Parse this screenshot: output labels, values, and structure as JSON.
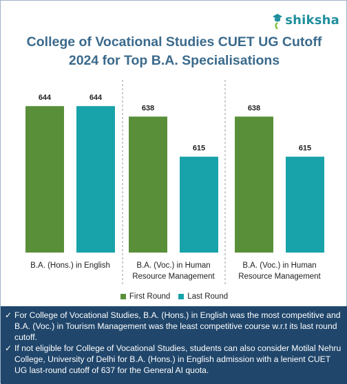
{
  "brand": {
    "name": "shiksha"
  },
  "title_lines": [
    "College of Vocational Studies CUET UG Cutoff",
    "2024 for Top B.A. Specialisations"
  ],
  "colors": {
    "first_round": "#5a8f3a",
    "last_round": "#17a3a9",
    "title": "#3b6a8c",
    "notes_bg": "#20466b"
  },
  "chart_data": {
    "type": "bar",
    "categories": [
      [
        "B.A. (Hons.) in English"
      ],
      [
        "B.A. (Voc.) in Human",
        "Resource Management"
      ],
      [
        "B.A. (Voc.) in Human",
        "Resource Management"
      ]
    ],
    "series": [
      {
        "name": "First Round",
        "values": [
          644,
          638,
          638
        ],
        "color": "#5a8f3a"
      },
      {
        "name": "Last Round",
        "values": [
          644,
          615,
          615
        ],
        "color": "#17a3a9"
      }
    ],
    "ylim": [
      560,
      650
    ],
    "grid": false,
    "legend": "bottom",
    "title": "College of Vocational Studies CUET UG Cutoff 2024 for Top B.A. Specialisations",
    "xlabel": "",
    "ylabel": ""
  },
  "legend": {
    "first_round": "First Round",
    "last_round": "Last Round"
  },
  "notes": {
    "check_glyph": "✓",
    "items": [
      "For College of Vocational Studies, B.A. (Hons.) in English was the most competitive and B.A. (Voc.) in Tourism Management was the least competitive course w.r.t its last round cutoff.",
      "If not eligible for College of Vocational Studies, students can also consider Motilal Nehru College, University of Delhi for B.A. (Hons.) in English admission with a lenient CUET UG last-round cutoff of 637 for the General AI quota."
    ]
  }
}
